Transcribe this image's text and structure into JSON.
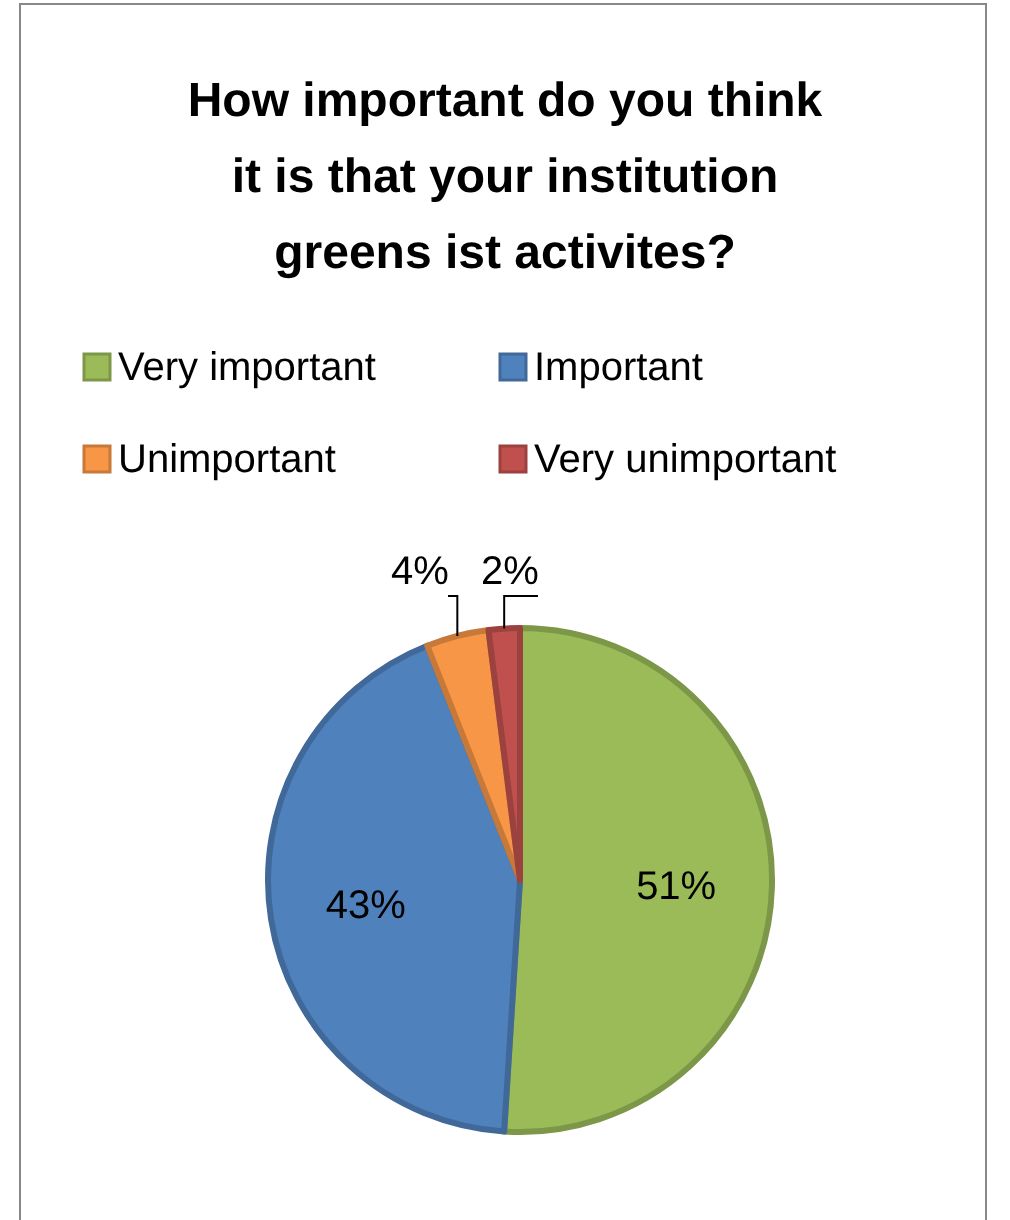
{
  "chart_data": {
    "type": "pie",
    "title": "How important do you think it is that your institution greens ist activites?",
    "categories": [
      "Very important",
      "Important",
      "Unimportant",
      "Very unimportant"
    ],
    "values": [
      51,
      43,
      4,
      2
    ],
    "colors": [
      "#9bbb59",
      "#4f81bd",
      "#f79646",
      "#c0504d"
    ],
    "legend": "top",
    "value_labels": [
      "51%",
      "43%",
      "4%",
      "2%"
    ]
  }
}
